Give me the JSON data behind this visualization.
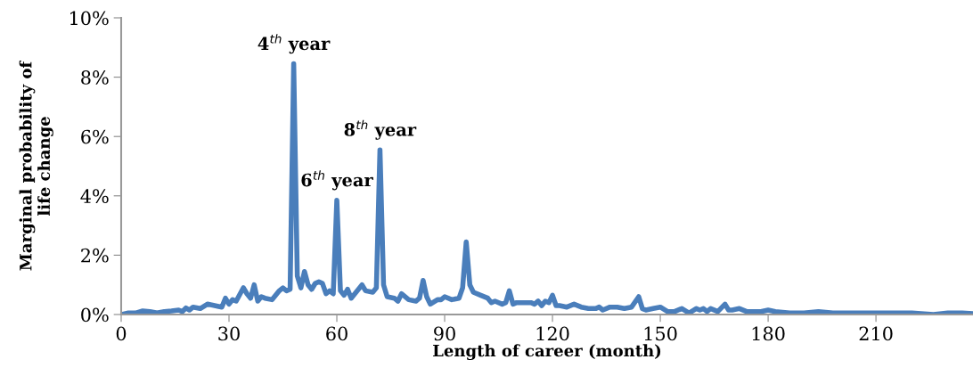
{
  "chart_data": {
    "type": "line",
    "xlabel": "Length of career (month)",
    "ylabel": "Marginal probability of\nlife change",
    "annotations": [
      {
        "text": "4$^{th}$ year",
        "x": 48,
        "y": 8.45
      },
      {
        "text": "6$^{th}$ year",
        "x": 60,
        "y": 3.85
      },
      {
        "text": "8$^{th}$ year",
        "x": 72,
        "y": 5.55
      }
    ],
    "xlim": [
      0,
      237
    ],
    "xticks": [
      0,
      30,
      60,
      90,
      120,
      150,
      180,
      210
    ],
    "ylim": [
      0,
      10
    ],
    "yticks": [
      {
        "value": 0,
        "label": "0%"
      },
      {
        "value": 2,
        "label": "2%"
      },
      {
        "value": 4,
        "label": "4%"
      },
      {
        "value": 6,
        "label": "6%"
      },
      {
        "value": 8,
        "label": "8%"
      },
      {
        "value": 10,
        "label": "10%"
      }
    ],
    "grid": false,
    "marker": "none",
    "line_style": "solid",
    "series": [
      {
        "color": "#4a7ebb",
        "x": [
          0,
          2,
          4,
          6,
          8,
          10,
          12,
          14,
          16,
          17,
          18,
          19,
          20,
          22,
          24,
          26,
          28,
          29,
          30,
          31,
          32,
          34,
          35,
          36,
          37,
          38,
          39,
          40,
          42,
          44,
          45,
          46,
          47,
          48,
          49,
          50,
          51,
          52,
          53,
          54,
          55,
          56,
          57,
          58,
          59,
          60,
          61,
          62,
          63,
          64,
          66,
          67,
          68,
          70,
          71,
          72,
          73,
          74,
          76,
          77,
          78,
          80,
          82,
          83,
          84,
          85,
          86,
          88,
          89,
          90,
          92,
          94,
          95,
          96,
          97,
          98,
          100,
          102,
          103,
          104,
          106,
          107,
          108,
          109,
          110,
          112,
          114,
          115,
          116,
          117,
          118,
          119,
          120,
          121,
          122,
          124,
          126,
          128,
          130,
          132,
          133,
          134,
          136,
          138,
          140,
          142,
          144,
          145,
          146,
          148,
          150,
          152,
          154,
          156,
          158,
          160,
          161,
          162,
          163,
          164,
          166,
          168,
          169,
          170,
          172,
          174,
          176,
          178,
          180,
          182,
          186,
          190,
          194,
          198,
          202,
          206,
          210,
          214,
          220,
          226,
          230,
          234,
          237
        ],
        "values": [
          0,
          0.05,
          0.05,
          0.12,
          0.1,
          0.05,
          0.1,
          0.12,
          0.15,
          0.1,
          0.22,
          0.15,
          0.25,
          0.2,
          0.35,
          0.3,
          0.25,
          0.55,
          0.35,
          0.5,
          0.45,
          0.9,
          0.7,
          0.55,
          1.0,
          0.45,
          0.6,
          0.55,
          0.5,
          0.8,
          0.9,
          0.8,
          0.85,
          8.45,
          1.3,
          0.9,
          1.45,
          1.0,
          0.85,
          1.05,
          1.1,
          1.05,
          0.7,
          0.8,
          0.7,
          3.85,
          0.8,
          0.65,
          0.85,
          0.55,
          0.85,
          1.0,
          0.8,
          0.75,
          0.9,
          5.55,
          1.0,
          0.6,
          0.55,
          0.45,
          0.7,
          0.5,
          0.45,
          0.55,
          1.15,
          0.6,
          0.35,
          0.5,
          0.5,
          0.6,
          0.5,
          0.55,
          0.9,
          2.45,
          1.0,
          0.75,
          0.65,
          0.55,
          0.4,
          0.45,
          0.35,
          0.4,
          0.8,
          0.35,
          0.4,
          0.4,
          0.4,
          0.35,
          0.45,
          0.3,
          0.45,
          0.4,
          0.65,
          0.3,
          0.3,
          0.25,
          0.35,
          0.25,
          0.2,
          0.2,
          0.25,
          0.15,
          0.25,
          0.25,
          0.2,
          0.25,
          0.6,
          0.2,
          0.15,
          0.2,
          0.25,
          0.1,
          0.1,
          0.2,
          0.05,
          0.2,
          0.15,
          0.2,
          0.1,
          0.2,
          0.1,
          0.35,
          0.15,
          0.15,
          0.2,
          0.1,
          0.1,
          0.1,
          0.15,
          0.1,
          0.05,
          0.05,
          0.1,
          0.05,
          0.05,
          0.05,
          0.05,
          0.05,
          0.05,
          0.0,
          0.05,
          0.05,
          0.03
        ]
      }
    ]
  }
}
